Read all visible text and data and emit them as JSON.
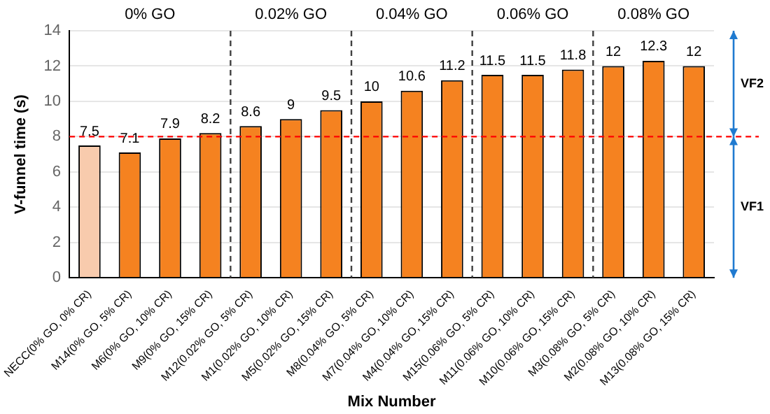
{
  "chart_data": {
    "type": "bar",
    "xlabel": "Mix Number",
    "ylabel": "V-funnel time (s)",
    "categories": [
      "NECC(0% GO, 0% CR)",
      "M14(0% GO, 5% CR)",
      "M6(0% GO, 10% CR)",
      "M9(0% GO, 15% CR)",
      "M12(0.02% GO, 5% CR)",
      "M1(0.02% GO, 10% CR)",
      "M5(0.02% GO, 15% CR)",
      "M8(0.04% GO, 5% CR)",
      "M7(0.04% GO, 10% CR)",
      "M4(0.04% GO, 15% CR)",
      "M15(0.06% GO, 5% CR)",
      "M11(0.06% GO, 10% CR)",
      "M10(0.06% GO, 15% CR)",
      "M3(0.08% GO, 5% CR)",
      "M2(0.08% GO, 10% CR)",
      "M13(0.08% GO, 15% CR)"
    ],
    "values": [
      7.5,
      7.1,
      7.9,
      8.2,
      8.6,
      9,
      9.5,
      10,
      10.6,
      11.2,
      11.5,
      11.5,
      11.8,
      12,
      12.3,
      12
    ],
    "colors": [
      "#f8cbad",
      "#f58220",
      "#f58220",
      "#f58220",
      "#f58220",
      "#f58220",
      "#f58220",
      "#f58220",
      "#f58220",
      "#f58220",
      "#f58220",
      "#f58220",
      "#f58220",
      "#f58220",
      "#f58220",
      "#f58220"
    ],
    "data_labels": true,
    "ylim": [
      0,
      14
    ],
    "yticks": [
      0,
      2,
      4,
      6,
      8,
      10,
      12,
      14
    ],
    "grid": "y",
    "ref_lines": [
      {
        "axis": "y",
        "value": 8,
        "label": null,
        "color": "#ff0000",
        "line_style": "dashed"
      }
    ],
    "annotations": [
      "0% GO",
      "0.02% GO",
      "0.04% GO",
      "0.06% GO",
      "0.08% GO",
      "VF1",
      "VF2"
    ],
    "legend": false
  }
}
